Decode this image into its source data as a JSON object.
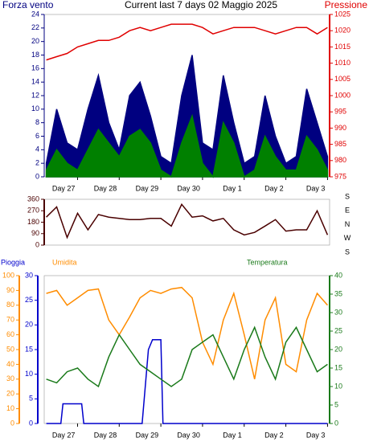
{
  "chart_data": [
    {
      "type": "line",
      "title": "Current last 7 days 02 Maggio 2025",
      "ylabel": "Forza vento",
      "y2label": "Pressione",
      "x": [
        -0.75,
        -0.5,
        -0.25,
        0,
        0.25,
        0.5,
        0.75,
        1,
        1.25,
        1.5,
        1.75,
        2,
        2.25,
        2.5,
        2.75,
        3,
        3.25,
        3.5,
        3.75,
        4,
        4.25,
        4.5,
        4.75,
        5,
        5.25,
        5.5,
        5.75,
        6
      ],
      "xlim": [
        -0.8,
        6.05
      ],
      "xticks": [
        {
          "value": 0,
          "label": "Day 27"
        },
        {
          "value": 1,
          "label": "Day 28"
        },
        {
          "value": 2,
          "label": "Day 29"
        },
        {
          "value": 3,
          "label": "Day 30"
        },
        {
          "value": 4,
          "label": "Day 1"
        },
        {
          "value": 5,
          "label": "Day 2"
        },
        {
          "value": 6,
          "label": "Day 3"
        }
      ],
      "ylim": [
        0,
        24
      ],
      "yticks": [
        0,
        2,
        4,
        6,
        8,
        10,
        12,
        14,
        16,
        18,
        20,
        22,
        24
      ],
      "y2lim": [
        975,
        1025
      ],
      "y2ticks": [
        975,
        980,
        985,
        990,
        995,
        1000,
        1005,
        1010,
        1015,
        1020,
        1025
      ],
      "series": [
        {
          "color": "#000080",
          "area": true,
          "values": [
            2,
            10,
            5,
            4,
            10,
            15,
            8,
            4,
            12,
            14,
            9,
            3,
            2,
            12,
            18,
            5,
            4,
            15,
            8,
            2,
            3,
            12,
            6,
            2,
            3,
            13,
            8,
            3
          ]
        },
        {
          "color": "#008000",
          "area": true,
          "values": [
            1,
            4,
            2,
            1,
            4,
            7,
            5,
            3,
            6,
            7,
            5,
            1,
            0,
            5,
            9,
            2,
            0,
            8,
            5,
            0,
            1,
            6,
            3,
            1,
            1,
            6,
            4,
            1
          ]
        },
        {
          "color": "#e00000",
          "axis": "y2",
          "values": [
            1011,
            1012,
            1013,
            1015,
            1016,
            1017,
            1017,
            1018,
            1020,
            1021,
            1020,
            1021,
            1022,
            1022,
            1022,
            1021,
            1019,
            1020,
            1021,
            1021,
            1021,
            1020,
            1019,
            1020,
            1021,
            1021,
            1019,
            1021
          ]
        }
      ]
    },
    {
      "type": "line",
      "annotations": [
        "S",
        "E",
        "N",
        "W",
        "S"
      ],
      "x": [
        -0.75,
        -0.5,
        -0.25,
        0,
        0.25,
        0.5,
        0.75,
        1,
        1.25,
        1.5,
        1.75,
        2,
        2.25,
        2.5,
        2.75,
        3,
        3.25,
        3.5,
        3.75,
        4,
        4.25,
        4.5,
        4.75,
        5,
        5.25,
        5.5,
        5.75,
        6
      ],
      "xlim": [
        -0.8,
        6.05
      ],
      "ylim": [
        0,
        360
      ],
      "yticks": [
        0,
        90,
        180,
        270,
        360
      ],
      "series": [
        {
          "color": "#4a0000",
          "values": [
            220,
            300,
            60,
            250,
            120,
            240,
            220,
            210,
            200,
            200,
            210,
            210,
            150,
            320,
            220,
            230,
            190,
            210,
            120,
            80,
            100,
            150,
            200,
            110,
            120,
            120,
            270,
            80
          ]
        }
      ]
    },
    {
      "type": "line",
      "x": [
        -0.75,
        -0.5,
        -0.25,
        0,
        0.25,
        0.5,
        0.75,
        1,
        1.25,
        1.5,
        1.75,
        2,
        2.25,
        2.5,
        2.75,
        3,
        3.25,
        3.5,
        3.75,
        4,
        4.25,
        4.5,
        4.75,
        5,
        5.25,
        5.5,
        5.75,
        6
      ],
      "xlim": [
        -0.8,
        6.05
      ],
      "xticks": [
        {
          "value": 0,
          "label": "Day 27"
        },
        {
          "value": 1,
          "label": "Day 28"
        },
        {
          "value": 2,
          "label": "Day 29"
        },
        {
          "value": 3,
          "label": "Day 30"
        },
        {
          "value": 4,
          "label": "Day 1"
        },
        {
          "value": 5,
          "label": "Day 2"
        },
        {
          "value": 6,
          "label": "Day 3"
        }
      ],
      "ylim": [
        0,
        30
      ],
      "yticks": [
        0,
        5,
        10,
        15,
        20,
        25,
        30
      ],
      "y2lim": [
        0,
        40
      ],
      "y2ticks": [
        0,
        5,
        10,
        15,
        20,
        25,
        30,
        35,
        40
      ],
      "y3lim": [
        0,
        100
      ],
      "y3ticks": [
        0,
        10,
        20,
        30,
        40,
        50,
        60,
        70,
        80,
        90,
        100
      ],
      "series": [
        {
          "name": "Pioggia",
          "color": "#0000cc",
          "x": [
            -0.75,
            -0.4,
            -0.35,
            0.1,
            0.15,
            1.55,
            1.7,
            1.8,
            2.0,
            2.05,
            6.0
          ],
          "values": [
            0,
            0,
            4,
            4,
            0,
            0,
            15,
            17,
            17,
            0,
            0
          ]
        },
        {
          "name": "Umidita",
          "color": "#ff8c00",
          "axis": "y3",
          "values": [
            88,
            90,
            80,
            85,
            90,
            91,
            70,
            60,
            72,
            85,
            90,
            88,
            91,
            92,
            85,
            55,
            40,
            70,
            88,
            60,
            30,
            70,
            85,
            40,
            35,
            70,
            88,
            80
          ]
        },
        {
          "name": "Temperatura",
          "color": "#1a7a1a",
          "axis": "y2",
          "values": [
            12,
            11,
            14,
            15,
            12,
            10,
            18,
            24,
            20,
            16,
            14,
            12,
            10,
            12,
            20,
            22,
            24,
            18,
            12,
            20,
            26,
            18,
            12,
            22,
            26,
            20,
            14,
            16
          ]
        }
      ]
    }
  ]
}
